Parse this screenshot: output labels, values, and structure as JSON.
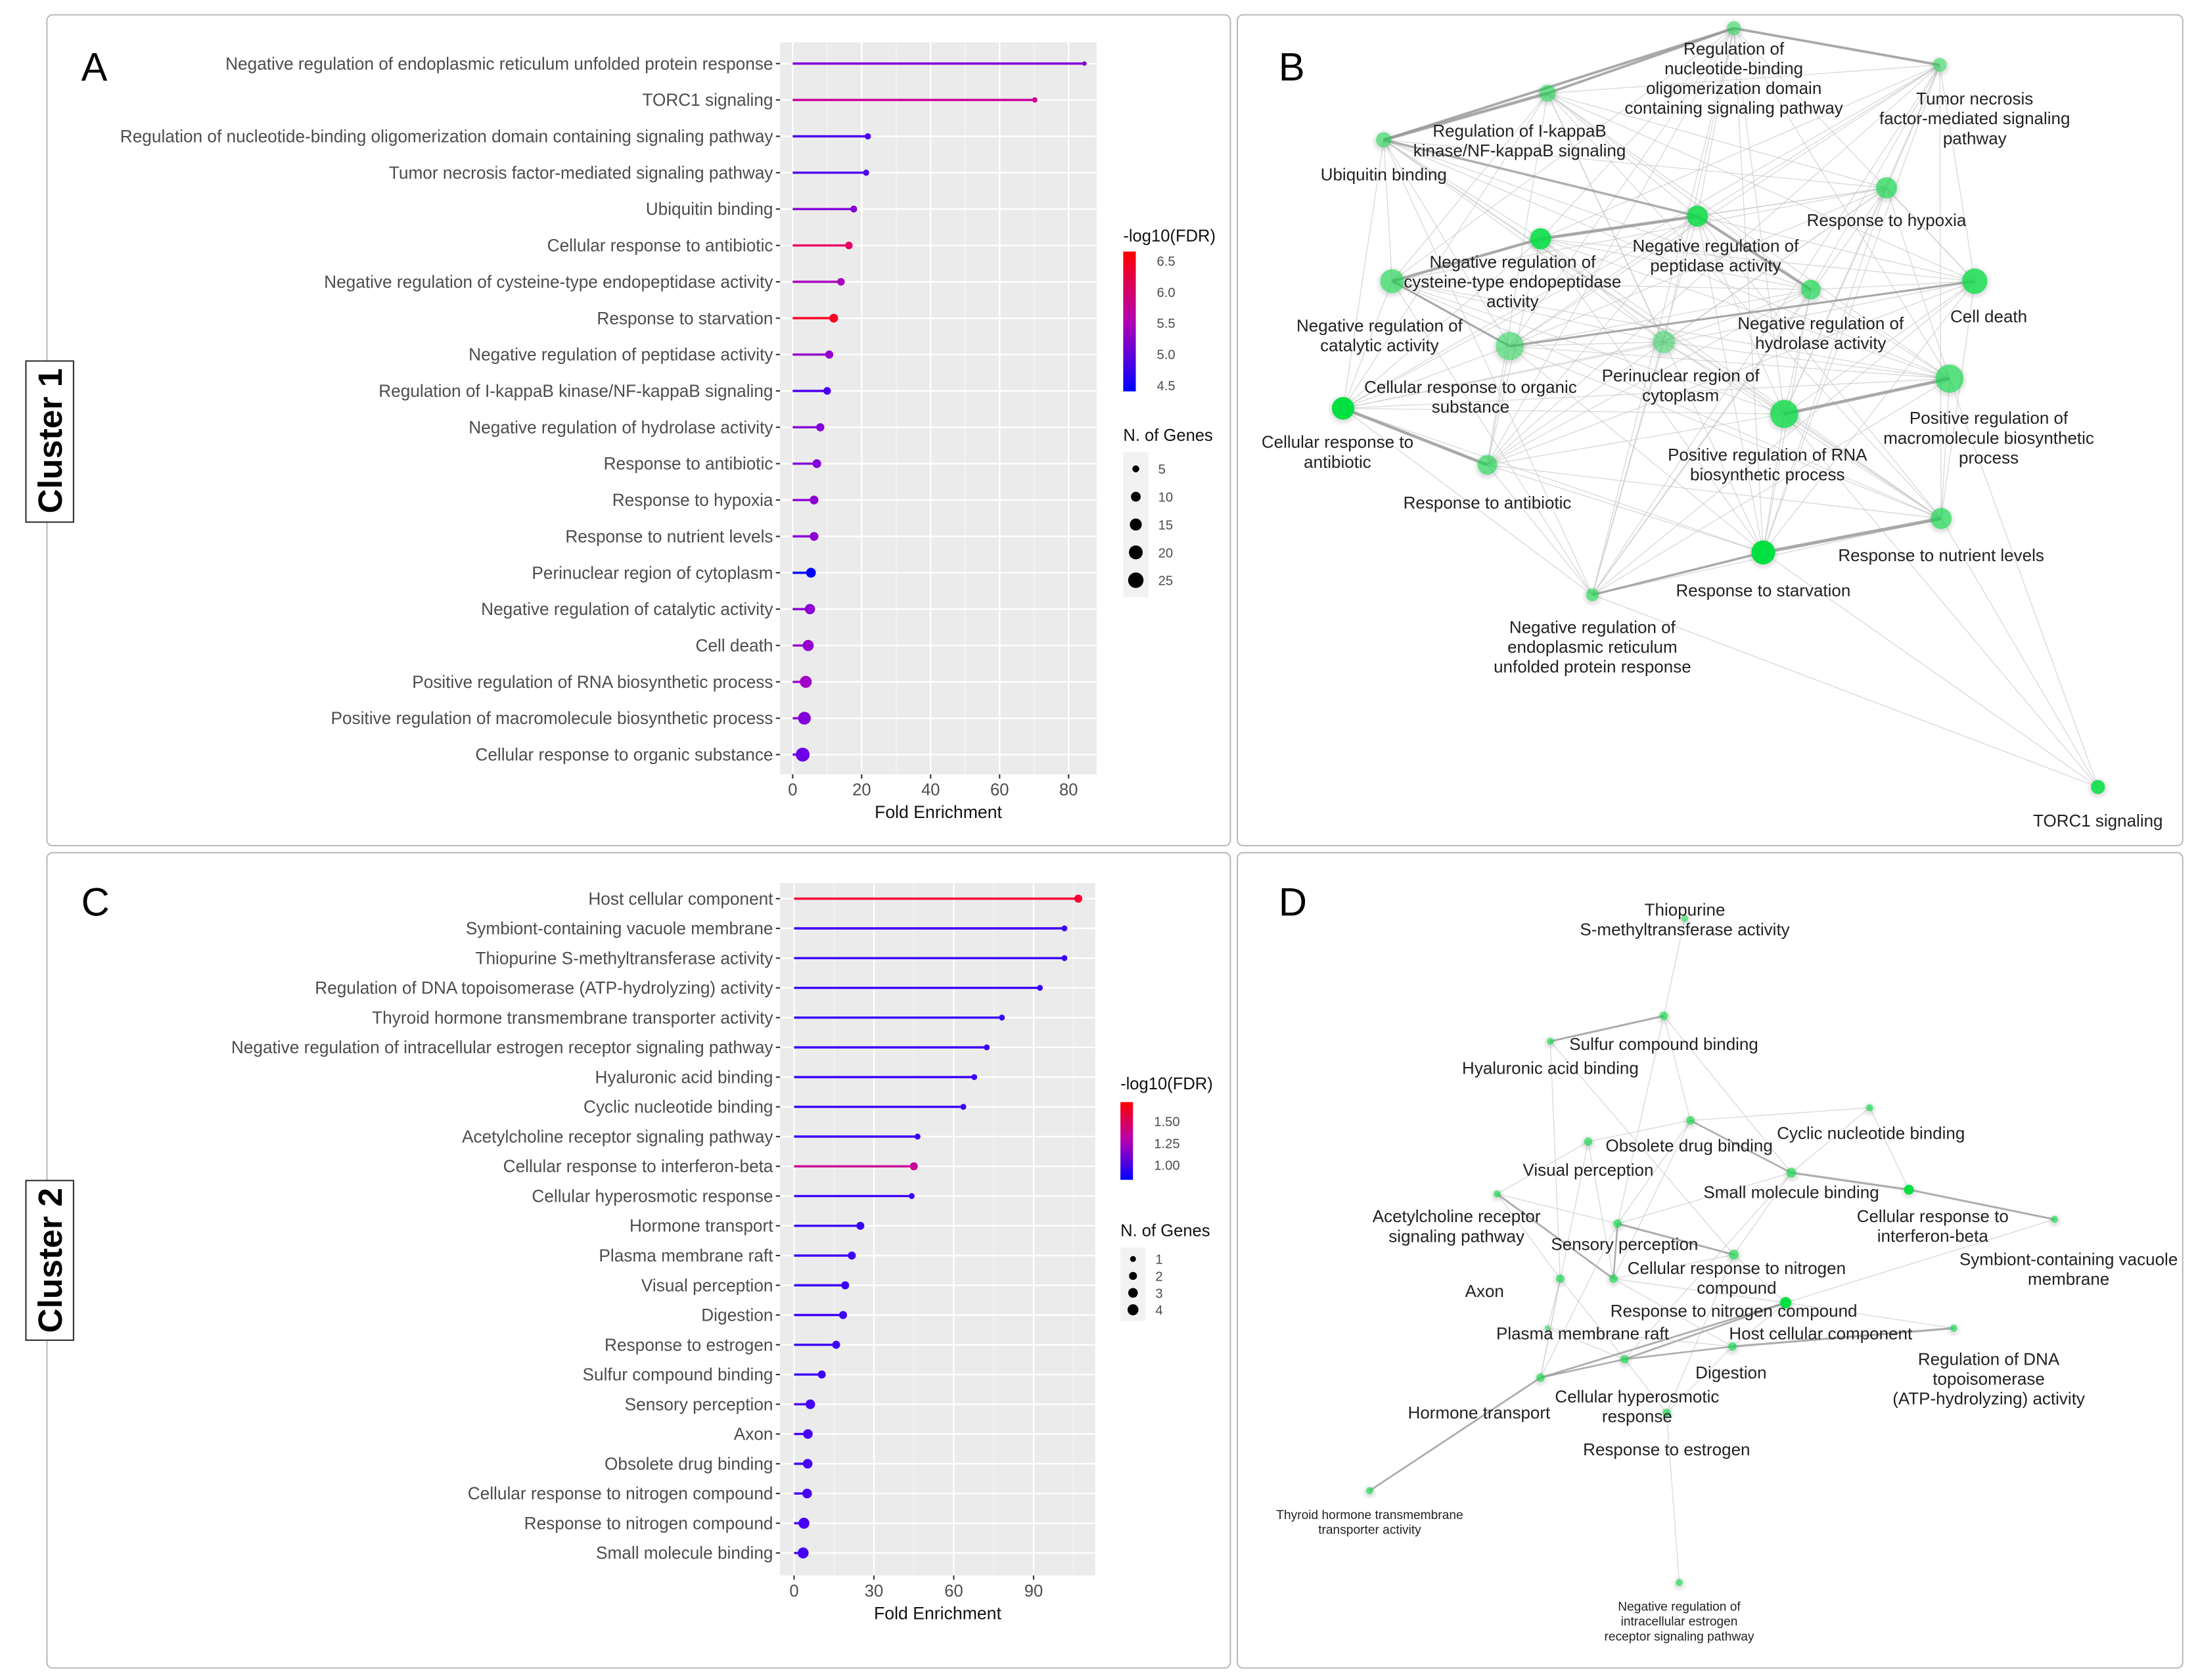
{
  "panels": {
    "a": "A",
    "b": "B",
    "c": "C",
    "d": "D"
  },
  "clusters": [
    "Cluster 1",
    "Cluster 2"
  ],
  "chart_data": [
    {
      "type": "lollipop",
      "panel": "A",
      "xlabel": "Fold Enrichment",
      "xlim": [
        0,
        87
      ],
      "xticks": [
        0,
        20,
        40,
        60,
        80
      ],
      "color_legend": {
        "title": "-log10(FDR)",
        "ticks": [
          6.5,
          6.0,
          5.5,
          5.0,
          4.5
        ],
        "range": [
          4.4,
          6.65
        ],
        "low": "#0000ff",
        "high": "#ff0000"
      },
      "size_legend": {
        "title": "N. of Genes",
        "ticks": [
          5,
          10,
          15,
          20,
          25
        ]
      },
      "categories": [
        "Negative regulation of endoplasmic reticulum unfolded protein response",
        "TORC1 signaling",
        "Regulation of nucleotide-binding oligomerization domain containing signaling pathway",
        "Tumor necrosis factor-mediated signaling pathway",
        "Ubiquitin binding",
        "Cellular response to antibiotic",
        "Negative regulation of cysteine-type endopeptidase activity",
        "Response to starvation",
        "Negative regulation of peptidase activity",
        "Regulation of I-kappaB kinase/NF-kappaB signaling",
        "Negative regulation of hydrolase activity",
        "Response to antibiotic",
        "Response to hypoxia",
        "Response to nutrient levels",
        "Perinuclear region of cytoplasm",
        "Negative regulation of catalytic activity",
        "Cell death",
        "Positive regulation of RNA biosynthetic process",
        "Positive regulation of macromolecule biosynthetic process",
        "Cellular response to organic substance"
      ],
      "fold_enrichment": [
        84.6,
        70.2,
        21.8,
        21.3,
        17.7,
        16.3,
        14.0,
        11.9,
        10.6,
        10.0,
        8.0,
        7.0,
        6.2,
        6.2,
        5.3,
        5.0,
        4.5,
        3.8,
        3.4,
        2.9
      ],
      "neg_log10_fdr": [
        5.0,
        5.8,
        4.6,
        4.6,
        5.0,
        6.3,
        5.4,
        6.6,
        5.2,
        4.6,
        5.0,
        5.0,
        5.1,
        5.1,
        4.4,
        5.1,
        5.2,
        5.3,
        5.0,
        4.8
      ],
      "n_genes": [
        2,
        3,
        4,
        4,
        5,
        6,
        6,
        8,
        7,
        6,
        7,
        8,
        8,
        8,
        10,
        11,
        13,
        15,
        17,
        20
      ]
    },
    {
      "type": "lollipop",
      "panel": "C",
      "xlabel": "Fold Enrichment",
      "xlim": [
        0,
        112
      ],
      "xticks": [
        0,
        30,
        60,
        90
      ],
      "color_legend": {
        "title": "-log10(FDR)",
        "ticks": [
          1.5,
          1.25,
          1.0
        ],
        "tick_labels": [
          "1.50",
          "1.25",
          "1.00"
        ],
        "range": [
          0.83,
          1.72
        ],
        "low": "#0000ff",
        "high": "#ff0000"
      },
      "size_legend": {
        "title": "N. of Genes",
        "ticks": [
          1,
          2,
          3,
          4
        ]
      },
      "categories": [
        "Host cellular component",
        "Symbiont-containing vacuole membrane",
        "Thiopurine S-methyltransferase activity",
        "Regulation of DNA topoisomerase (ATP-hydrolyzing) activity",
        "Thyroid hormone transmembrane transporter activity",
        "Negative regulation of intracellular estrogen receptor signaling pathway",
        "Hyaluronic acid binding",
        "Cyclic nucleotide binding",
        "Acetylcholine receptor signaling pathway",
        "Cellular response to interferon-beta",
        "Cellular hyperosmotic response",
        "Hormone transport",
        "Plasma membrane raft",
        "Visual perception",
        "Digestion",
        "Response to estrogen",
        "Sulfur compound binding",
        "Sensory perception",
        "Axon",
        "Obsolete drug binding",
        "Cellular response to nitrogen compound",
        "Response to nitrogen compound",
        "Small molecule binding"
      ],
      "fold_enrichment": [
        106.8,
        101.6,
        101.6,
        92.4,
        78.1,
        72.4,
        67.7,
        63.6,
        46.4,
        45.0,
        44.2,
        24.9,
        21.7,
        19.2,
        18.4,
        15.8,
        10.4,
        6.1,
        5.2,
        5.1,
        4.9,
        3.7,
        3.4
      ],
      "neg_log10_fdr": [
        1.68,
        0.88,
        0.88,
        0.88,
        0.88,
        0.88,
        0.88,
        0.88,
        0.88,
        1.4,
        0.88,
        0.88,
        0.88,
        0.88,
        0.88,
        0.88,
        0.88,
        0.9,
        0.9,
        0.9,
        0.9,
        0.9,
        0.9
      ],
      "n_genes": [
        2,
        1,
        1,
        1,
        1,
        1,
        1,
        1,
        1,
        2,
        1,
        2,
        2,
        2,
        2,
        2,
        2,
        3,
        3,
        3,
        3,
        4,
        4
      ]
    }
  ],
  "network_b": {
    "node_color": "#00e040",
    "labels": [
      [
        "Regulation of",
        "nucleotide-binding",
        "oligomerization domain",
        "containing signaling pathway"
      ],
      [
        "Tumor necrosis",
        "factor-mediated signaling",
        "pathway"
      ],
      [
        "Regulation of I-kappaB",
        "kinase/NF-kappaB signaling"
      ],
      [
        "Ubiquitin binding"
      ],
      [
        "Response to hypoxia"
      ],
      [
        "Negative regulation of",
        "peptidase activity"
      ],
      [
        "Negative regulation of",
        "cysteine-type endopeptidase",
        "activity"
      ],
      [
        "Negative regulation of",
        "catalytic activity"
      ],
      [
        "Negative regulation of",
        "hydrolase activity"
      ],
      [
        "Cell death"
      ],
      [
        "Cellular response to organic",
        "substance"
      ],
      [
        "Perinuclear region of",
        "cytoplasm"
      ],
      [
        "Cellular response to",
        "antibiotic"
      ],
      [
        "Response to antibiotic"
      ],
      [
        "Positive regulation of RNA",
        "biosynthetic process"
      ],
      [
        "Positive regulation of",
        "macromolecule biosynthetic",
        "process"
      ],
      [
        "Response to nutrient levels"
      ],
      [
        "Response to starvation"
      ],
      [
        "Negative regulation of",
        "endoplasmic reticulum",
        "unfolded protein response"
      ],
      [
        "TORC1 signaling"
      ]
    ]
  },
  "network_d": {
    "node_color": "#00e040",
    "labels": [
      [
        "Thiopurine",
        "S-methyltransferase activity"
      ],
      [
        "Sulfur compound binding"
      ],
      [
        "Hyaluronic acid binding"
      ],
      [
        "Cyclic nucleotide binding"
      ],
      [
        "Obsolete drug binding"
      ],
      [
        "Visual perception"
      ],
      [
        "Small molecule binding"
      ],
      [
        "Cellular response to",
        "interferon-beta"
      ],
      [
        "Acetylcholine receptor",
        "signaling pathway"
      ],
      [
        "Symbiont-containing vacuole",
        "membrane"
      ],
      [
        "Sensory perception"
      ],
      [
        "Cellular response to nitrogen",
        "compound"
      ],
      [
        "Response to nitrogen compound"
      ],
      [
        "Axon"
      ],
      [
        "Plasma membrane raft"
      ],
      [
        "Host cellular component"
      ],
      [
        "Regulation of DNA",
        "topoisomerase",
        "(ATP-hydrolyzing) activity"
      ],
      [
        "Digestion"
      ],
      [
        "Cellular hyperosmotic",
        "response"
      ],
      [
        "Hormone transport"
      ],
      [
        "Response to estrogen"
      ],
      [
        "Thyroid hormone transmembrane",
        "transporter activity"
      ],
      [
        "Negative regulation of",
        "intracellular estrogen",
        "receptor signaling pathway"
      ]
    ]
  }
}
